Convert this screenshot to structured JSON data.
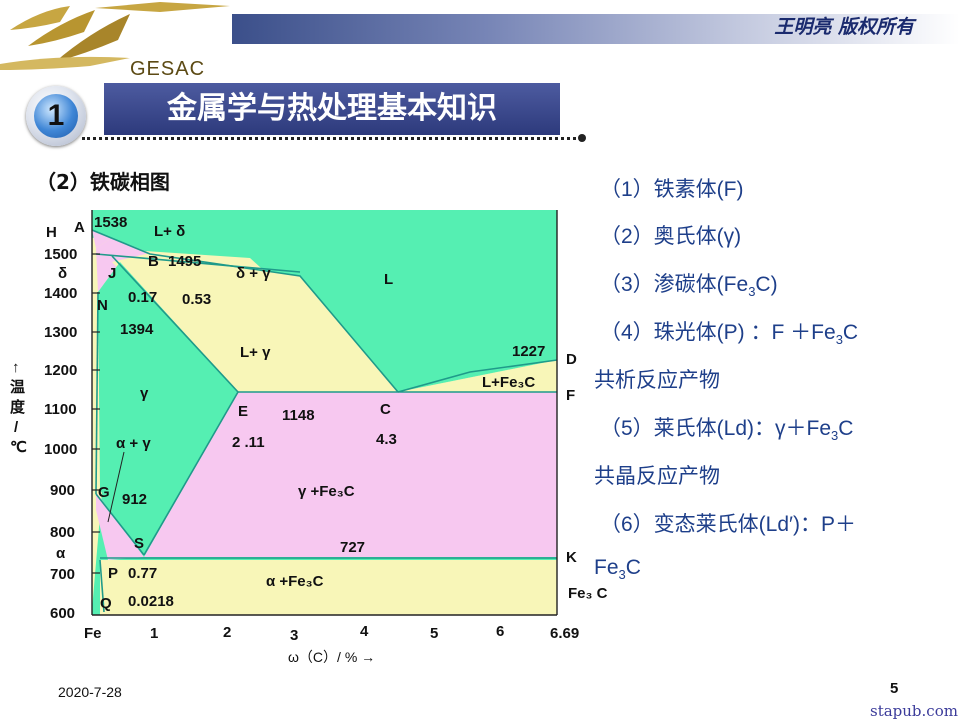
{
  "header": {
    "copyright": "王明亮 版权所有",
    "logo_text": "GESAC"
  },
  "section": {
    "number": "1",
    "title": "金属学与热处理基本知识"
  },
  "subtitle": "（2）铁碳相图",
  "phases": [
    {
      "before": "（1）铁素体(F)",
      "sub": "",
      "after": ""
    },
    {
      "before": "（2）奥氏体(γ)",
      "sub": "",
      "after": ""
    },
    {
      "before": "（3）渗碳体(Fe",
      "sub": "3",
      "after": "C)"
    },
    {
      "before": "（4）珠光体(P) ：F ＋Fe",
      "sub": "3",
      "after": "C"
    },
    {
      "before": "共析反应产物",
      "sub": "",
      "after": ""
    },
    {
      "before": "（5）莱氏体(Ld)：γ＋Fe",
      "sub": "3",
      "after": "C"
    },
    {
      "before": "共晶反应产物",
      "sub": "",
      "after": ""
    },
    {
      "before": "（6）变态莱氏体(Ld′)：P＋",
      "sub": "",
      "after": ""
    },
    {
      "before": "Fe",
      "sub": "3",
      "after": "C"
    }
  ],
  "diagram": {
    "colors": {
      "green": "#55efb2",
      "pink": "#f7c8f0",
      "yellow": "#f8f6b8",
      "teal_line": "#1f9a8a"
    },
    "y_axis": {
      "title_chars": [
        "↑",
        "温",
        "度",
        "/",
        "℃"
      ],
      "ticks": [
        "1500",
        "1400",
        "1300",
        "1200",
        "1100",
        "1000",
        "900",
        "800",
        "700",
        "600"
      ],
      "extra_labels": [
        "H",
        "δ",
        "α"
      ]
    },
    "x_axis": {
      "ticks": [
        "Fe",
        "1",
        "2",
        "3",
        "4",
        "5",
        "6",
        "6.69"
      ],
      "title": "ω（C）/ % →"
    },
    "points": [
      "A",
      "B",
      "J",
      "N",
      "E",
      "C",
      "D",
      "F",
      "G",
      "S",
      "P",
      "Q",
      "K"
    ],
    "temperatures": [
      "1538",
      "1495",
      "1394",
      "1148",
      "1227",
      "912",
      "727"
    ],
    "compositions": [
      "0.17",
      "0.53",
      "2 .11",
      "4.3",
      "0.77",
      "0.0218"
    ],
    "regions": {
      "L_delta": "L+ δ",
      "delta_gamma": "δ + γ",
      "L": "L",
      "L_gamma": "L+ γ",
      "gamma": "γ",
      "alpha_gamma": "α + γ",
      "L_Fe3C": "L+Fe₃C",
      "gamma_Fe3C": "γ +Fe₃C",
      "alpha_Fe3C": "α +Fe₃C"
    },
    "right_label": "Fe₃ C"
  },
  "footer": {
    "date": "2020-7-28",
    "page": "5",
    "watermark": "stapub.com"
  }
}
